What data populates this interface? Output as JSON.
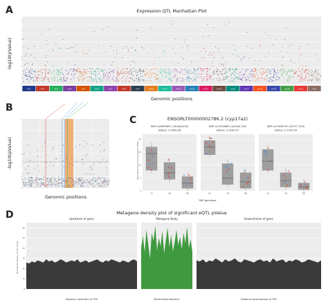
{
  "panels": {
    "A": {
      "letter": "A"
    },
    "B": {
      "letter": "B"
    },
    "C": {
      "letter": "C"
    },
    "D": {
      "letter": "D"
    }
  },
  "colors": {
    "panel_bg": "#ececec",
    "grid": "#ffffff",
    "orange": "#f0a868",
    "green_area": "#3f9a3f",
    "dark_area": "#3a3a3a",
    "box": "#9e9e9e",
    "point_red": "#e34a33",
    "point_blue": "#4a90d9",
    "ref_line_red": "#e06060",
    "ref_line_blue": "#6aa0e8",
    "ref_line_green": "#5cbc5c"
  },
  "chart_data": [
    {
      "type": "scatter",
      "title": "Expression QTL Manhattan Plot",
      "xlabel": "Genomic positions",
      "ylabel": "-log10(pValue)",
      "categories": [
        "chr1",
        "chr2",
        "chr3",
        "chr4",
        "chr5",
        "chr6",
        "chr7",
        "chr8",
        "chr9",
        "chr10",
        "chr11",
        "chr12",
        "chr13",
        "chr14",
        "chr15",
        "chr16",
        "chr17",
        "chr18",
        "chr19",
        "chr20",
        "chr21",
        "chrX"
      ],
      "chrom_colors": [
        "#1f3a8a",
        "#c0392b",
        "#27ae60",
        "#7b3fa0",
        "#d35400",
        "#16a085",
        "#8e44ad",
        "#c0392b",
        "#2c3e50",
        "#e67e22",
        "#1abc9c",
        "#9b59b6",
        "#2980b9",
        "#d81b60",
        "#6d4c41",
        "#00897b",
        "#5e35b1",
        "#f4511e",
        "#3949ab",
        "#43a047",
        "#e53935",
        "#8d6e63"
      ],
      "grid": true
    },
    {
      "type": "scatter",
      "xlabel": "Genomic positions",
      "ylabel": "-log10(pValue)",
      "grid": true
    },
    {
      "type": "bar",
      "title": "ENSORLT00000002786.2 (cyp17a2)",
      "xlabel": "SNP genotype",
      "ylabel": "Normalised transcript expression (TPM)",
      "categories": [
        "AA",
        "AB",
        "BB"
      ],
      "series": [
        {
          "name": "SNP rs16999691 (18:458,033)",
          "pvalue": "pValue: 9.256e-08",
          "medians": [
            14.5,
            7.0,
            3.0
          ],
          "q1": [
            8.0,
            4.5,
            1.0
          ],
          "q3": [
            17.0,
            11.0,
            5.5
          ]
        },
        {
          "name": "SNP rs17004669 (18:546,744)",
          "pvalue": "pValue: 3.329e-07",
          "medians": [
            17.0,
            5.0,
            3.5
          ],
          "q1": [
            14.0,
            2.5,
            1.0
          ],
          "q3": [
            19.5,
            10.5,
            7.0
          ]
        },
        {
          "name": "SNP rs17006176 (18:577,303)",
          "pvalue": "pValue: 2.120e-09",
          "medians": [
            11.5,
            4.0,
            1.5
          ],
          "q1": [
            8.0,
            1.5,
            0.5
          ],
          "q3": [
            16.0,
            7.0,
            3.0
          ]
        }
      ],
      "ylim": [
        0,
        22
      ],
      "yticks": [
        0,
        5,
        10,
        15,
        20
      ]
    },
    {
      "type": "area",
      "title": "Metagene density plot of significant eQTL pValue",
      "ylabel": "Normalised density per bin length",
      "ylim": [
        0,
        65
      ],
      "yticks": [
        0,
        10,
        20,
        30,
        40,
        50,
        60
      ],
      "facets": [
        {
          "name": "Upstream of gene",
          "xlabel": "Distance upstream of TSS",
          "values": [
            26,
            25,
            27,
            26,
            28,
            27,
            26,
            29,
            27,
            28,
            26,
            27,
            29,
            28,
            26,
            27,
            28,
            27,
            29,
            26,
            27,
            28,
            26,
            27,
            28,
            29,
            27,
            26,
            28,
            27,
            29,
            28,
            27,
            26,
            28,
            27,
            26,
            28,
            29,
            27
          ]
        },
        {
          "name": "Metagene Body",
          "xlabel": "Normalised distance",
          "values": [
            40,
            52,
            36,
            58,
            44,
            30,
            55,
            47,
            62,
            38,
            50,
            42,
            57,
            35,
            48,
            60,
            41,
            53,
            37,
            46,
            58,
            43,
            51,
            39,
            55,
            45,
            61,
            40,
            49,
            36
          ]
        },
        {
          "name": "Downstream of gene",
          "xlabel": "Distance downstream of TES",
          "values": [
            28,
            27,
            29,
            26,
            28,
            27,
            30,
            28,
            26,
            29,
            27,
            28,
            30,
            27,
            26,
            29,
            28,
            27,
            26,
            28,
            29,
            27,
            28,
            26,
            30,
            27,
            28,
            29,
            26,
            28,
            27,
            29,
            28,
            26,
            27,
            29,
            28,
            27,
            26,
            28
          ]
        }
      ]
    }
  ]
}
